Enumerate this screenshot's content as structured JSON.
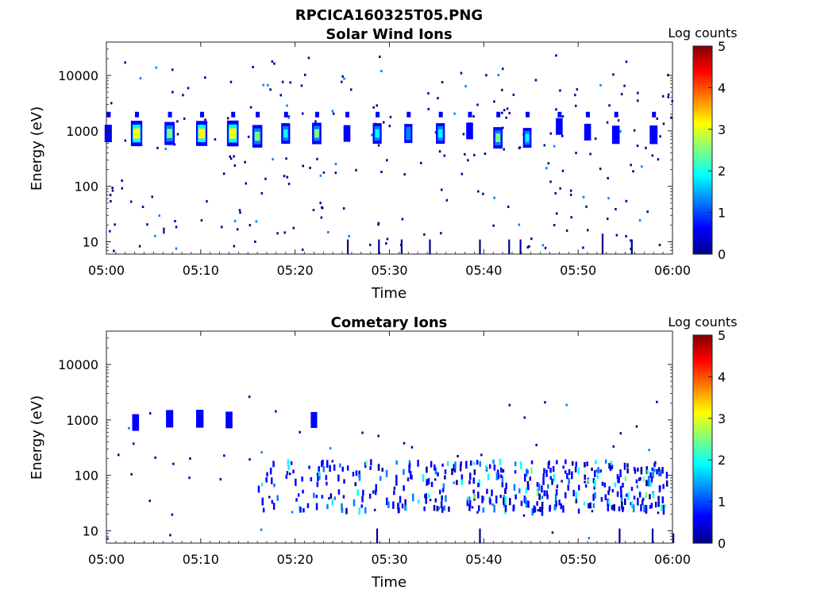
{
  "figure_title": "RPCICA160325T05.PNG",
  "colors": {
    "colormap": [
      "#00008f",
      "#0000ff",
      "#007fff",
      "#00ffff",
      "#7fff7f",
      "#ffff00",
      "#ff7f00",
      "#ff0000",
      "#7f0000"
    ]
  },
  "chart_data": [
    {
      "type": "heatmap",
      "title": "Solar Wind Ions",
      "xlabel": "Time",
      "ylabel": "Energy (eV)",
      "yscale": "log",
      "ylim": [
        6,
        40000
      ],
      "xlim": [
        "05:00",
        "06:00"
      ],
      "xticks": [
        "05:00",
        "05:10",
        "05:20",
        "05:30",
        "05:40",
        "05:50",
        "06:00"
      ],
      "yticks": [
        10,
        100,
        1000,
        10000
      ],
      "ytick_labels": [
        "10",
        "100",
        "1000",
        "10000"
      ],
      "colorbar": {
        "label": "Log counts",
        "range": [
          0,
          5
        ],
        "ticks": [
          "0",
          "1",
          "2",
          "3",
          "4",
          "5"
        ]
      },
      "bursts": [
        {
          "t": 0.2,
          "e": 900,
          "level": 1.2
        },
        {
          "t": 3.2,
          "e": 900,
          "level": 3.2
        },
        {
          "t": 6.7,
          "e": 900,
          "level": 2.6
        },
        {
          "t": 10.1,
          "e": 900,
          "level": 3.1
        },
        {
          "t": 13.4,
          "e": 900,
          "level": 3.3
        },
        {
          "t": 16.0,
          "e": 800,
          "level": 2.5
        },
        {
          "t": 19.0,
          "e": 900,
          "level": 2.0
        },
        {
          "t": 22.3,
          "e": 900,
          "level": 2.2
        },
        {
          "t": 25.5,
          "e": 900,
          "level": 1.0
        },
        {
          "t": 28.7,
          "e": 900,
          "level": 2.0
        },
        {
          "t": 32.0,
          "e": 900,
          "level": 1.6
        },
        {
          "t": 35.4,
          "e": 900,
          "level": 2.0
        },
        {
          "t": 38.5,
          "e": 1000,
          "level": 1.0
        },
        {
          "t": 41.5,
          "e": 750,
          "level": 2.2
        },
        {
          "t": 44.6,
          "e": 750,
          "level": 1.8
        },
        {
          "t": 48.0,
          "e": 1200,
          "level": 1.0
        },
        {
          "t": 51.0,
          "e": 950,
          "level": 1.0
        },
        {
          "t": 54.0,
          "e": 850,
          "level": 1.4
        },
        {
          "t": 58.0,
          "e": 850,
          "level": 1.5
        }
      ],
      "low_streaks": [
        {
          "t": 25.5,
          "e1": 6,
          "e2": 11
        },
        {
          "t": 28.8,
          "e1": 6,
          "e2": 11
        },
        {
          "t": 31.2,
          "e1": 6,
          "e2": 11
        },
        {
          "t": 34.2,
          "e1": 6,
          "e2": 11
        },
        {
          "t": 39.5,
          "e1": 6,
          "e2": 11
        },
        {
          "t": 42.6,
          "e1": 6,
          "e2": 11
        },
        {
          "t": 43.8,
          "e1": 6,
          "e2": 11
        },
        {
          "t": 52.5,
          "e1": 6,
          "e2": 14
        },
        {
          "t": 55.6,
          "e1": 6,
          "e2": 11
        },
        {
          "t": 6.0,
          "e1": 14,
          "e2": 18
        }
      ]
    },
    {
      "type": "heatmap",
      "title": "Cometary Ions",
      "xlabel": "Time",
      "ylabel": "Energy (eV)",
      "yscale": "log",
      "ylim": [
        6,
        40000
      ],
      "xlim": [
        "05:00",
        "06:00"
      ],
      "xticks": [
        "05:00",
        "05:10",
        "05:20",
        "05:30",
        "05:40",
        "05:50",
        "06:00"
      ],
      "yticks": [
        10,
        100,
        1000,
        10000
      ],
      "ytick_labels": [
        "10",
        "100",
        "1000",
        "10000"
      ],
      "colorbar": {
        "label": "Log counts",
        "range": [
          0,
          5
        ],
        "ticks": [
          "0",
          "1",
          "2",
          "3",
          "4",
          "5"
        ]
      },
      "bursts": [
        {
          "t": 3.1,
          "e": 900,
          "level": 1.0
        },
        {
          "t": 6.7,
          "e": 1050,
          "level": 1.2
        },
        {
          "t": 9.9,
          "e": 1050,
          "level": 1.3
        },
        {
          "t": 13.0,
          "e": 1000,
          "level": 1.0
        },
        {
          "t": 22.0,
          "e": 1000,
          "level": 0.8
        }
      ],
      "low_streaks": [
        {
          "t": 28.6,
          "e1": 6,
          "e2": 11
        },
        {
          "t": 39.5,
          "e1": 6,
          "e2": 11
        },
        {
          "t": 54.3,
          "e1": 6,
          "e2": 11
        },
        {
          "t": 57.8,
          "e1": 6,
          "e2": 11
        },
        {
          "t": 60.0,
          "e1": 6,
          "e2": 9
        }
      ],
      "low_band": {
        "t_start": 16.0,
        "t_end": 59.5,
        "e_min": 25,
        "e_max": 200
      }
    }
  ]
}
